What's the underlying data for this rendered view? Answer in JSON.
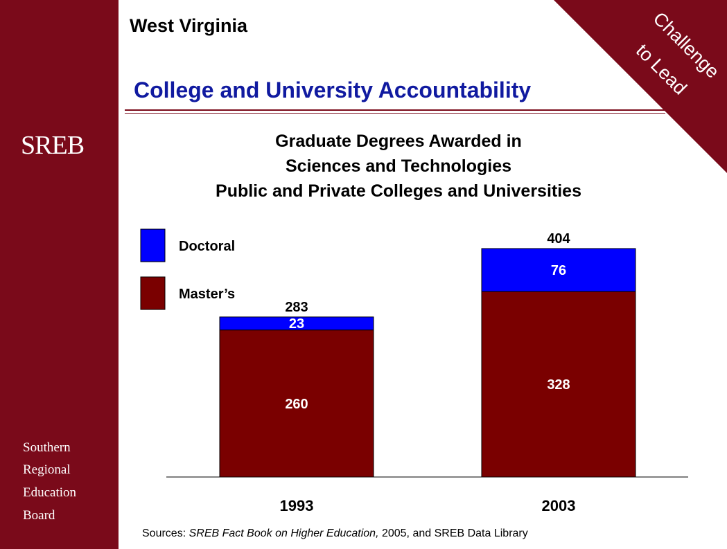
{
  "header": {
    "state": "West Virginia",
    "headline": "College and University Accountability",
    "badge_line1": "Challenge",
    "badge_line2": "to Lead"
  },
  "sidebar": {
    "logo": "SREB",
    "org_lines": [
      "Southern",
      "Regional",
      "Education",
      "Board"
    ]
  },
  "source": {
    "prefix": "Sources: ",
    "italic": "SREB Fact Book on Higher Education,",
    "suffix": " 2005, and SREB Data Library"
  },
  "colors": {
    "maroon": "#7a0a1a",
    "headline_blue": "#101aa0",
    "doctoral": "#0000ff",
    "masters": "#7a0000"
  },
  "chart_data": {
    "type": "bar",
    "stacked": true,
    "title_lines": [
      "Graduate Degrees Awarded in",
      "Sciences and Technologies",
      "Public and Private Colleges and Universities"
    ],
    "categories": [
      "1993",
      "2003"
    ],
    "series": [
      {
        "name": "Master’s",
        "values": [
          260,
          328
        ],
        "color": "#7a0000"
      },
      {
        "name": "Doctoral",
        "values": [
          23,
          76
        ],
        "color": "#0000ff"
      }
    ],
    "totals": [
      283,
      404
    ],
    "legend_order": [
      "Doctoral",
      "Master’s"
    ],
    "legend_position": "top-left",
    "ylim": [
      0,
      404
    ],
    "grid": false
  }
}
